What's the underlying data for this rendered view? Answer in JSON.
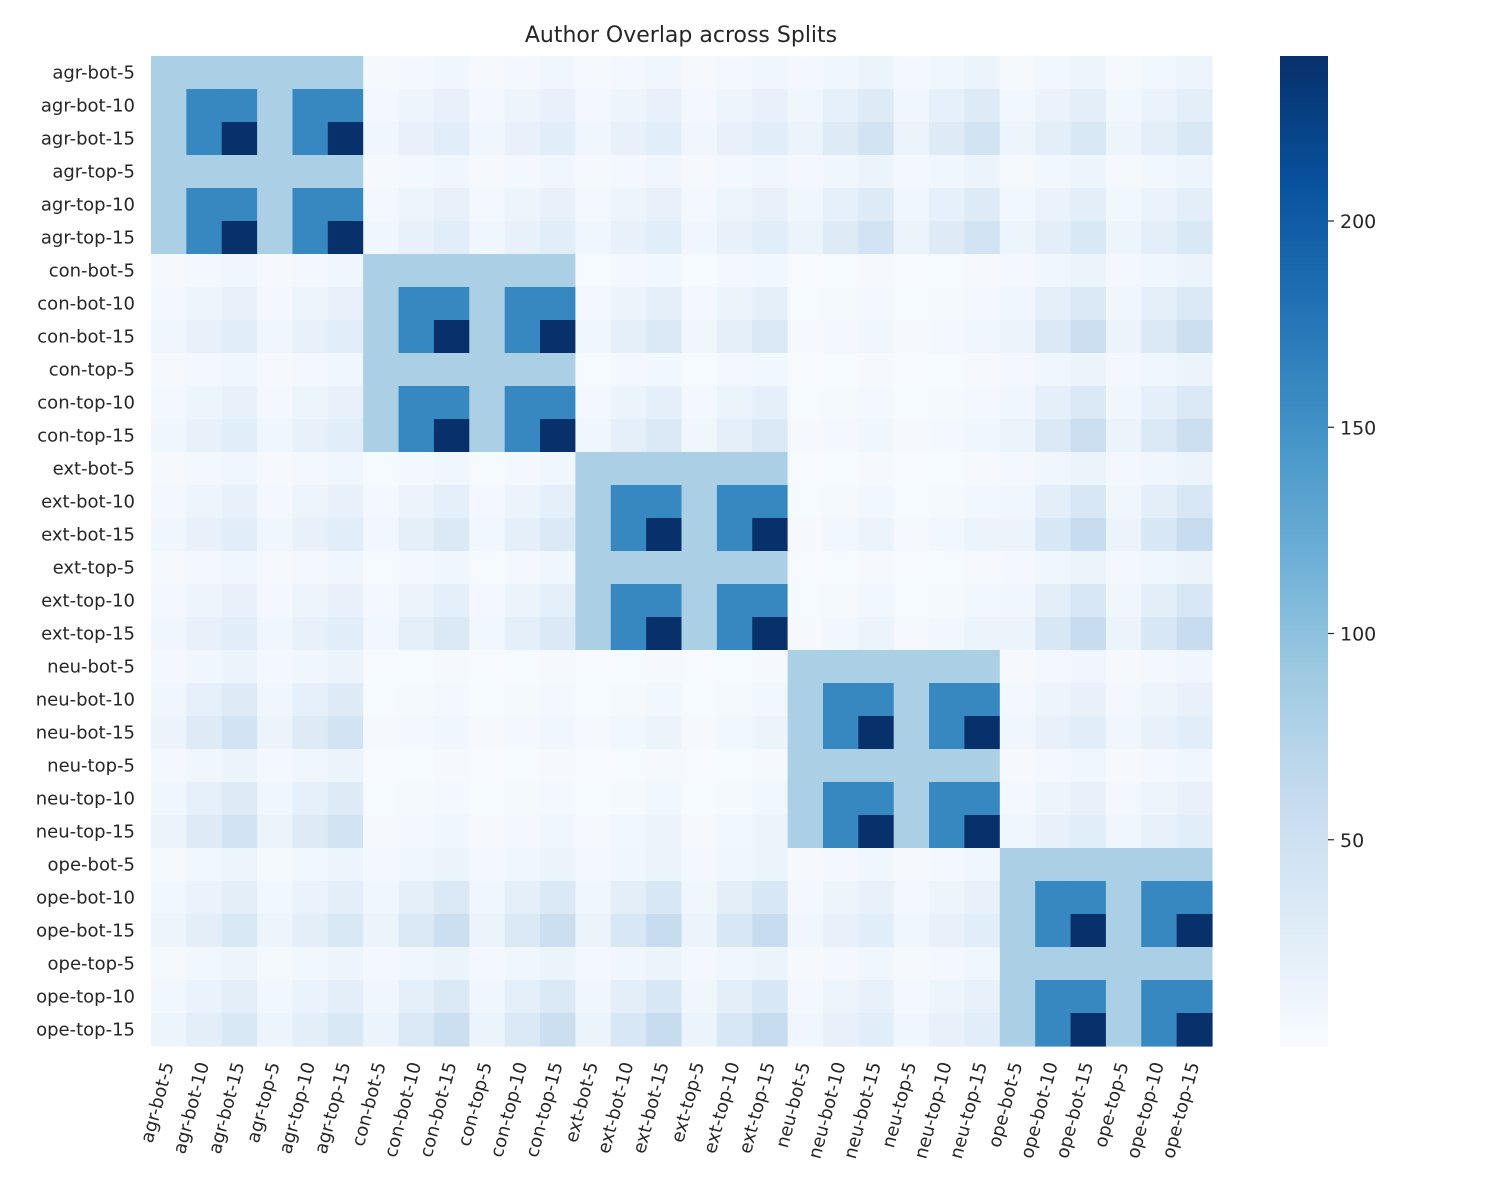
{
  "chart_data": {
    "type": "heatmap",
    "title": "Author Overlap across Splits",
    "xlabel": "",
    "ylabel": "",
    "labels": [
      "agr-bot-5",
      "agr-bot-10",
      "agr-bot-15",
      "agr-top-5",
      "agr-top-10",
      "agr-top-15",
      "con-bot-5",
      "con-bot-10",
      "con-bot-15",
      "con-top-5",
      "con-top-10",
      "con-top-15",
      "ext-bot-5",
      "ext-bot-10",
      "ext-bot-15",
      "ext-top-5",
      "ext-top-10",
      "ext-top-15",
      "neu-bot-5",
      "neu-bot-10",
      "neu-bot-15",
      "neu-top-5",
      "neu-top-10",
      "neu-top-15",
      "ope-bot-5",
      "ope-bot-10",
      "ope-bot-15",
      "ope-top-5",
      "ope-top-10",
      "ope-top-15"
    ],
    "groups": [
      "agr",
      "con",
      "ext",
      "neu",
      "ope"
    ],
    "splits": [
      5,
      10,
      15
    ],
    "diagonal_block_values": {
      "5": 80,
      "10": 160,
      "15": 240
    },
    "off_diagonal_values": {
      "agr-con": [
        [
          3,
          6,
          9
        ],
        [
          6,
          12,
          18
        ],
        [
          9,
          18,
          27
        ]
      ],
      "agr-ext": [
        [
          3,
          6,
          9
        ],
        [
          6,
          12,
          18
        ],
        [
          9,
          18,
          27
        ]
      ],
      "agr-neu": [
        [
          5,
          10,
          15
        ],
        [
          10,
          20,
          30
        ],
        [
          15,
          30,
          45
        ]
      ],
      "agr-ope": [
        [
          4,
          8,
          12
        ],
        [
          8,
          16,
          24
        ],
        [
          12,
          24,
          36
        ]
      ],
      "con-ext": [
        [
          2,
          5,
          8
        ],
        [
          6,
          14,
          22
        ],
        [
          10,
          22,
          34
        ]
      ],
      "con-neu": [
        [
          1,
          2,
          3
        ],
        [
          2,
          4,
          6
        ],
        [
          3,
          6,
          9
        ]
      ],
      "con-ope": [
        [
          5,
          10,
          15
        ],
        [
          10,
          22,
          34
        ],
        [
          15,
          34,
          52
        ]
      ],
      "ext-neu": [
        [
          1,
          2,
          3
        ],
        [
          2,
          4,
          8
        ],
        [
          3,
          8,
          14
        ]
      ],
      "ext-ope": [
        [
          5,
          10,
          15
        ],
        [
          10,
          24,
          38
        ],
        [
          15,
          38,
          58
        ]
      ],
      "neu-ope": [
        [
          3,
          6,
          9
        ],
        [
          6,
          12,
          18
        ],
        [
          9,
          18,
          27
        ]
      ]
    },
    "colorbar": {
      "ticks": [
        50,
        100,
        150,
        200
      ],
      "min": 0,
      "max": 240,
      "colormap": "Blues"
    }
  }
}
